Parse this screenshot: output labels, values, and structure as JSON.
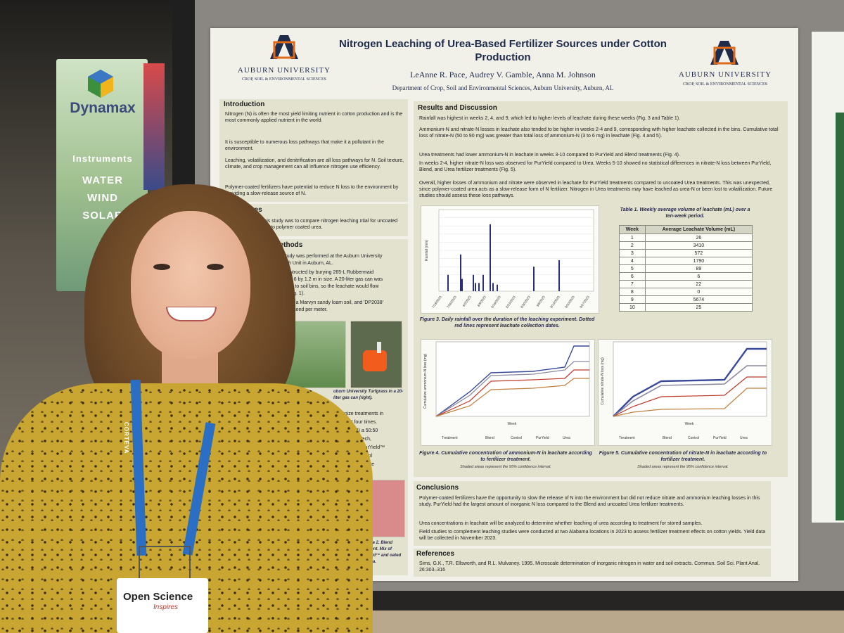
{
  "scene": {
    "colors": {
      "board": "#8a8782",
      "poster": "#f1f1ea",
      "panel": "#e2e2cf",
      "shirt": "#c9a531",
      "lanyard": "#2a6fc4"
    }
  },
  "sign": {
    "brand": "Dynamax",
    "instruments": "Instruments",
    "words": [
      "WATER",
      "WIND",
      "SOLAR"
    ]
  },
  "poster": {
    "title": "Nitrogen Leaching of Urea-Based Fertilizer Sources under Cotton Production",
    "authors": "LeAnne R. Pace, Audrey V. Gamble, Anna M. Johnson",
    "department": "Department of Crop, Soil and Environmental Sciences, Auburn University, Auburn, AL",
    "university": "AUBURN UNIVERSITY",
    "university_dept": "CROP, SOIL & ENVIRONMENTAL SCIENCES",
    "intro": {
      "heading": "Introduction",
      "bullets": [
        "Nitrogen (N) is often the most yield limiting nutrient in cotton production and is the most commonly applied nutrient in the world.",
        "It is susceptible to numerous loss pathways that make it a pollutant in the environment.",
        "Leaching, volatilization, and denitrification are all loss pathways for N. Soil texture, climate, and crop management can all influence nitrogen use efficiency.",
        "Polymer-coated fertilizers have potential to reduce N loss to the environment by providing a slow-release source of N."
      ]
    },
    "objectives": {
      "heading": "jectives",
      "text": "objective of this study was to compare nitrogen leaching ntial for uncoated urea compared to polymer coated urea."
    },
    "methods": {
      "heading": "als and Methods",
      "lines": [
        "week study was performed at the Auburn University",
        "Research Unit in Auburn, AL.",
        "were constructed by burying 265-L Rubbermaid",
        "VA) bins 0.6 by 1.2 m in size. A 20-liter gas can was",
        "with tubing to soil bins, so the leachate would flow",
        "the can (Fig. 1).",
        "e filled with a Marvyn sandy loam soil, and 'DP2038'",
        "anted at 5 seed per meter."
      ],
      "fig1_caption": "uburn University Turfgrass in a 20-liter gas can (right).",
      "treat_lines": [
        "ganize treatments in",
        "ement four times.",
        "(Urea), 2) a 50:50",
        "rsell Agri-Tech,",
        "Fig. 2), 3) PurYield™",
        "ertilized control",
        "applied at a rate",
        "ead square"
      ],
      "fig2_caption": "gure 2. Blend tment. Mix of Yield™ and oated Urea."
    },
    "results": {
      "heading": "Results and Discussion",
      "bullets": [
        "Rainfall was highest in weeks 2, 4, and 9, which led to higher levels of leachate during these weeks (Fig. 3 and Table 1).",
        "Ammonium-N and nitrate-N losses in leachate also tended to be higher in weeks 2-4 and 9, corresponding with higher leachate collected in the bins. Cumulative total loss of nitrate-N (50 to 90 mg) was greater than total loss of ammonium-N (3 to 6 mg) in leachate (Fig. 4 and 5).",
        "Urea treatments had lower ammonium-N in leachate in weeks 3-10 compared to PurYield and Blend treatments (Fig. 4).",
        "In weeks 2-4, higher nitrate-N loss was observed for PurYield compared to Urea. Weeks 5-10 showed no statistical differences in nitrate-N loss between PurYield, Blend, and Urea fertilizer treatments (Fig. 5).",
        "Overall, higher losses of ammonium and nitrate were observed in leachate for PurYield treatments compared to uncoated Urea treatments. This was unexpected, since polymer-coated urea acts as a slow-release form of N fertilizer. Nitrogen in Urea treatments may have leached as urea-N or been lost to volatilization. Future studies should assess these loss pathways."
      ]
    },
    "fig3": {
      "caption": "Figure 3. Daily rainfall over the duration of the leaching experiment. Dotted red lines represent leachate collection dates.",
      "ylabel": "Rainfall (mm)",
      "dates": [
        "7/19/2023",
        "7/26/2023",
        "8/2/2023",
        "8/9/2023",
        "8/16/2023",
        "8/23/2023",
        "8/30/2023",
        "9/6/2023",
        "9/13/2023",
        "9/20/2023",
        "9/27/2023"
      ]
    },
    "table1": {
      "caption": "Table 1. Weekly average volume of leachate (mL) over a ten-week period.",
      "headers": [
        "Week",
        "Average Leachate Volume (mL)"
      ],
      "rows": [
        [
          "1",
          "26"
        ],
        [
          "2",
          "3410"
        ],
        [
          "3",
          "572"
        ],
        [
          "4",
          "1790"
        ],
        [
          "5",
          "89"
        ],
        [
          "6",
          "6"
        ],
        [
          "7",
          "22"
        ],
        [
          "8",
          "0"
        ],
        [
          "9",
          "5674"
        ],
        [
          "10",
          "25"
        ]
      ]
    },
    "fig4": {
      "caption": "Figure 4. Cumulative concentration of ammonium-N in leachate according to fertilizer treatment.",
      "sub": "Shaded areas represent the 95% confidence interval.",
      "ylabel": "Cumulative ammonium-N loss (mg)",
      "xlabel": "Week",
      "legend": [
        "Treatment",
        "Blend",
        "Control",
        "PurYield",
        "Urea"
      ]
    },
    "fig5": {
      "caption": "Figure 5. Cumulative concentration of nitrate-N in leachate according to fertilizer treatment.",
      "sub": "Shaded areas represent the 95% confidence interval.",
      "ylabel": "Cumulative nitrate-N loss (mg)",
      "xlabel": "Week",
      "legend": [
        "Treatment",
        "Blend",
        "Control",
        "PurYield",
        "Urea"
      ]
    },
    "conclusions": {
      "heading": "Conclusions",
      "bullets": [
        "Polymer-coated fertilizers have the opportunity to slow the release of N into the environment but did not reduce nitrate and ammonium leaching losses in this study. PurYield had the largest amount of inorganic N loss compared to the Blend and uncoated Urea fertilizer treatments.",
        "Urea concentrations in leachate will be analyzed to determine whether leaching of urea according to treatment for stored samples.",
        "Field studies to complement leaching studies were conducted at two Alabama locations in 2023 to assess fertilizer treatment effects on cotton yields. Yield data will be collected in November 2023."
      ]
    },
    "references": {
      "heading": "References",
      "text": "Sims, G.K., T.R. Ellsworth, and R.L. Mulvaney. 1995. Microscale determination of inorganic nitrogen in water and soil extracts. Commun. Soil Sci. Plant Anal. 26:303–316"
    }
  },
  "badge": {
    "title": "Open Science",
    "subtitle": "Inspires",
    "lanyard_text": "CORTEVA"
  }
}
